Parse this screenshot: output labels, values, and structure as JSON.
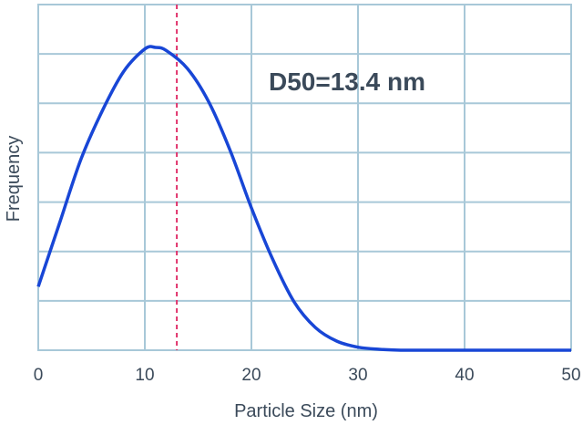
{
  "chart_data": {
    "type": "line",
    "xlabel": "Particle Size (nm)",
    "ylabel": "Frequency",
    "xlim": [
      0,
      50
    ],
    "ylim": [
      0,
      1
    ],
    "x_ticks": [
      0,
      10,
      20,
      30,
      40,
      50
    ],
    "x_tick_labels": [
      "0",
      "10",
      "20",
      "30",
      "40",
      "50"
    ],
    "y_tick_labels": [],
    "grid": true,
    "series": [
      {
        "x": [
          0,
          2,
          4,
          6,
          8,
          10,
          11,
          12,
          14,
          16,
          18,
          20,
          22,
          24,
          26,
          28,
          30,
          32,
          34,
          36,
          40,
          45,
          50
        ],
        "values": [
          0.21,
          0.42,
          0.63,
          0.79,
          0.92,
          0.995,
          1.0,
          0.99,
          0.93,
          0.82,
          0.66,
          0.47,
          0.3,
          0.16,
          0.075,
          0.03,
          0.01,
          0.003,
          0.0,
          0.0,
          0.0,
          0.0,
          0.0
        ],
        "color": "#1846d6"
      }
    ],
    "reference_line": {
      "x": 13,
      "color": "#e0336b",
      "style": "dashed"
    },
    "annotation": {
      "text": "D50=13.4 nm"
    }
  }
}
